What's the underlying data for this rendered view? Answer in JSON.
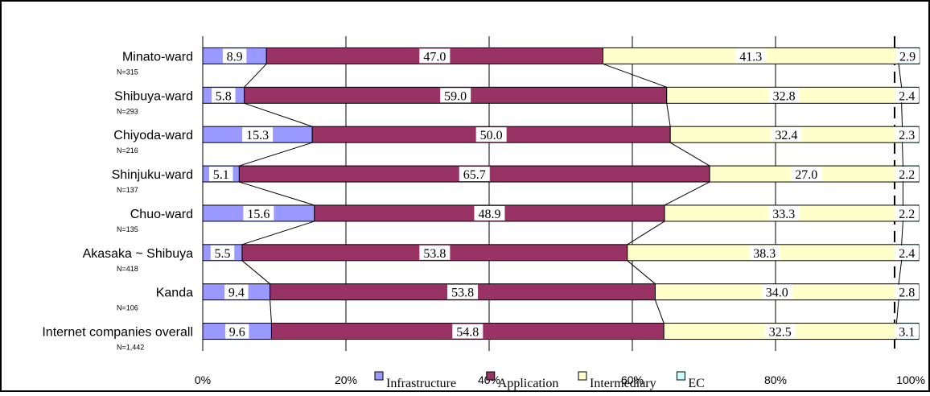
{
  "chart_data": {
    "type": "bar",
    "stacked": true,
    "orientation": "horizontal",
    "percent": true,
    "categories": [
      "Minato-ward",
      "Shibuya-ward",
      "Chiyoda-ward",
      "Shinjuku-ward",
      "Chuo-ward",
      "Akasaka ~ Shibuya",
      "Kanda",
      "Internet companies overall"
    ],
    "sample_sizes": [
      "N=315",
      "N=293",
      "N=216",
      "N=137",
      "N=135",
      "N=418",
      "N=106",
      "N=1,442"
    ],
    "series": [
      {
        "name": "Infrastructure",
        "color": "#9999ff",
        "values": [
          8.9,
          5.8,
          15.3,
          5.1,
          15.6,
          5.5,
          9.4,
          9.6
        ],
        "labels": [
          "8.9",
          "5.8",
          "15.3",
          "5.1",
          "15.6",
          "5.5",
          "9.4",
          "9.6"
        ]
      },
      {
        "name": "Application",
        "color": "#993366",
        "values": [
          47.0,
          59.0,
          50.0,
          65.7,
          48.9,
          53.8,
          53.8,
          54.8
        ],
        "labels": [
          "47.0",
          "59.0",
          "50.0",
          "65.7",
          "48.9",
          "53.8",
          "53.8",
          "54.8"
        ]
      },
      {
        "name": "Intermediary",
        "color": "#ffffcc",
        "values": [
          41.3,
          32.8,
          32.4,
          27.0,
          33.3,
          38.3,
          34.0,
          32.5
        ],
        "labels": [
          "41.3",
          "32.8",
          "32.4",
          "27.0",
          "33.3",
          "38.3",
          "34.0",
          "32.5"
        ]
      },
      {
        "name": "EC",
        "color": "#ccffff",
        "values": [
          2.9,
          2.4,
          2.3,
          2.2,
          2.2,
          2.4,
          2.8,
          3.1
        ],
        "labels": [
          "2.9",
          "2.4",
          "2.3",
          "2.2",
          "2.2",
          "2.4",
          "2.8",
          "3.1"
        ]
      }
    ],
    "xlim": [
      0,
      100
    ],
    "xticks": [
      "0%",
      "20%",
      "40%",
      "60%",
      "80%",
      "100%"
    ],
    "grid": true,
    "series_lines": true,
    "legend": "bottom"
  }
}
